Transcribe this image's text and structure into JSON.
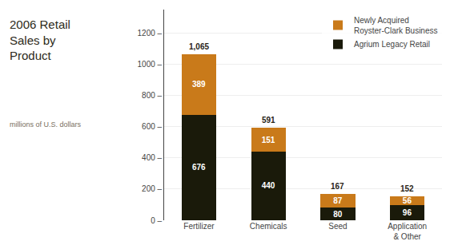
{
  "chart_data": {
    "type": "bar",
    "title": "2006 Retail\nSales by\nProduct",
    "subtitle": "millions of U.S. dollars",
    "categories": [
      "Fertilizer",
      "Chemicals",
      "Seed",
      "Application\n& Other"
    ],
    "series": [
      {
        "name": "Agrium Legacy Retail",
        "color": "#1a1a0a",
        "values": [
          676,
          440,
          80,
          96
        ]
      },
      {
        "name": "Newly Acquired\nRoyster-Clark Business",
        "color": "#c97a1a",
        "values": [
          389,
          151,
          87,
          56
        ]
      }
    ],
    "totals": {
      "values": [
        1065,
        591,
        167,
        152
      ],
      "value_labels": [
        "1,065",
        "591",
        "167",
        "152"
      ]
    },
    "stacked": true,
    "data_labels": true,
    "ylim": [
      0,
      1350
    ],
    "yticks": [
      {
        "value": 0,
        "label": "0 –"
      },
      {
        "value": 200,
        "label": "200 –"
      },
      {
        "value": 400,
        "label": "400 –"
      },
      {
        "value": 600,
        "label": "600 –"
      },
      {
        "value": 800,
        "label": "800 –"
      },
      {
        "value": 1000,
        "label": "1000 –"
      },
      {
        "value": 1200,
        "label": "1200 –"
      }
    ],
    "grid": true,
    "legend": "upper right"
  }
}
